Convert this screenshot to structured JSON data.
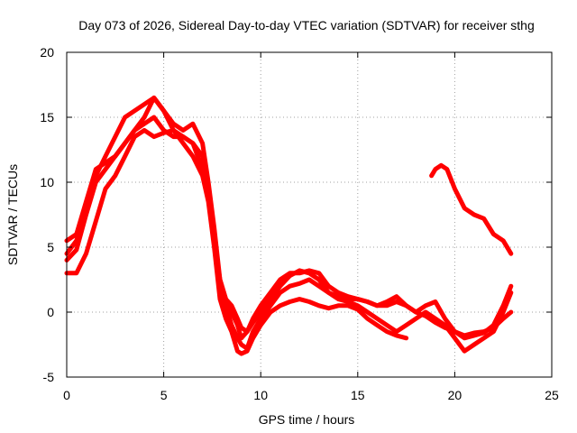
{
  "chart_data": {
    "type": "line",
    "title": "Day 073 of 2026, Sidereal Day-to-day VTEC variation (SDTVAR) for receiver sthg",
    "xlabel": "GPS time / hours",
    "ylabel": "SDTVAR / TECUs",
    "xlim": [
      0,
      25
    ],
    "ylim": [
      -5,
      20
    ],
    "xticks": [
      0,
      5,
      10,
      15,
      20,
      25
    ],
    "yticks": [
      -5,
      0,
      5,
      10,
      15,
      20
    ],
    "grid": true,
    "series_color": "#ff0000",
    "grid_color": "#a0a0a0",
    "series": [
      {
        "name": "trace-1",
        "x": [
          0.0,
          0.5,
          1.0,
          1.5,
          2.0,
          2.5,
          3.0,
          3.5,
          4.0,
          4.5,
          5.0,
          5.5,
          6.0,
          6.5,
          7.0,
          7.3,
          7.6,
          7.9,
          8.2,
          8.5,
          8.8,
          9.0,
          9.3,
          9.6,
          10.0,
          10.5,
          11.0,
          11.5,
          12.0,
          12.5,
          13.0,
          13.5,
          14.0,
          14.5,
          15.0,
          15.5,
          16.0,
          16.5,
          17.0,
          17.5,
          18.0,
          18.5,
          19.0,
          19.5,
          20.0,
          20.5,
          21.0,
          21.5,
          22.0,
          22.5,
          22.9
        ],
        "y": [
          5.5,
          6.0,
          8.5,
          11.0,
          11.5,
          12.0,
          13.0,
          14.0,
          15.0,
          16.5,
          15.5,
          14.0,
          13.5,
          13.0,
          12.0,
          9.0,
          5.5,
          2.5,
          1.0,
          0.0,
          -1.0,
          -2.0,
          -1.5,
          -0.5,
          0.5,
          1.5,
          2.5,
          3.0,
          3.0,
          3.2,
          3.0,
          2.0,
          1.5,
          1.2,
          1.0,
          0.8,
          0.5,
          0.5,
          0.8,
          0.5,
          0.0,
          -0.3,
          -0.8,
          -1.2,
          -1.5,
          -1.8,
          -1.6,
          -1.5,
          -1.2,
          -0.5,
          0.0
        ]
      },
      {
        "name": "trace-2",
        "x": [
          0.0,
          0.5,
          1.0,
          1.5,
          2.0,
          2.5,
          3.0,
          3.5,
          4.0,
          4.5,
          5.0,
          5.5,
          6.0,
          6.5,
          7.0,
          7.3,
          7.6,
          7.9,
          8.2,
          8.5,
          8.8,
          9.0,
          9.3,
          9.6,
          10.0,
          10.5,
          11.0,
          11.5,
          12.0,
          12.5,
          13.0,
          13.5,
          14.0,
          14.5,
          15.0,
          15.5,
          16.0,
          16.5,
          17.0,
          17.5,
          18.0,
          18.5,
          19.0,
          19.5,
          20.0,
          20.5,
          21.0,
          21.5,
          22.0,
          22.5,
          22.9
        ],
        "y": [
          4.5,
          5.5,
          8.0,
          10.5,
          12.0,
          13.5,
          15.0,
          15.5,
          16.0,
          16.5,
          15.5,
          14.5,
          14.0,
          14.5,
          13.0,
          10.0,
          6.5,
          2.5,
          1.0,
          0.5,
          -0.5,
          -1.2,
          -1.5,
          -0.8,
          0.0,
          1.0,
          2.0,
          2.8,
          3.2,
          3.0,
          2.5,
          1.5,
          1.2,
          1.0,
          1.0,
          0.8,
          0.5,
          0.8,
          1.2,
          0.5,
          0.0,
          0.5,
          0.8,
          -0.5,
          -1.5,
          -2.0,
          -1.8,
          -1.6,
          -1.0,
          0.5,
          2.0
        ]
      },
      {
        "name": "trace-3",
        "x": [
          0.0,
          0.5,
          1.0,
          1.5,
          2.0,
          2.5,
          3.0,
          3.5,
          4.0,
          4.5,
          5.0,
          5.5,
          6.0,
          6.5,
          7.0,
          7.3,
          7.6,
          7.9,
          8.2,
          8.5,
          8.8,
          9.0,
          9.3,
          9.6,
          10.0,
          10.5,
          11.0,
          11.5,
          12.0,
          12.5,
          13.0,
          13.5,
          14.0,
          14.5,
          15.0,
          15.5,
          16.0,
          16.5,
          17.0,
          17.5,
          18.0,
          18.5,
          19.0,
          19.5,
          20.0,
          20.5,
          21.0,
          21.5,
          22.0,
          22.5,
          22.9
        ],
        "y": [
          4.0,
          4.8,
          7.5,
          10.0,
          11.0,
          12.0,
          13.0,
          14.0,
          14.5,
          15.0,
          14.0,
          13.5,
          13.5,
          13.0,
          11.0,
          9.0,
          6.0,
          2.0,
          0.5,
          -1.0,
          -2.0,
          -2.5,
          -2.8,
          -1.5,
          -0.5,
          0.5,
          1.5,
          2.0,
          2.2,
          2.5,
          2.0,
          1.5,
          1.0,
          0.8,
          0.5,
          0.0,
          -0.5,
          -1.0,
          -1.5,
          -1.0,
          -0.5,
          0.0,
          -0.5,
          -1.0,
          -2.0,
          -3.0,
          -2.5,
          -2.0,
          -1.5,
          0.0,
          1.5
        ]
      },
      {
        "name": "trace-4",
        "x": [
          0.0,
          0.5,
          1.0,
          1.5,
          2.0,
          2.5,
          3.0,
          3.5,
          4.0,
          4.5,
          5.0,
          5.5,
          6.0,
          6.5,
          7.0,
          7.3,
          7.6,
          7.9,
          8.2,
          8.5,
          8.8,
          9.0,
          9.3,
          9.6,
          10.0,
          10.5,
          11.0,
          11.5,
          12.0,
          12.5,
          13.0,
          13.5,
          14.0,
          14.5,
          15.0,
          15.5,
          16.0,
          16.5,
          17.0,
          17.5
        ],
        "y": [
          3.0,
          3.0,
          4.5,
          7.0,
          9.5,
          10.5,
          12.0,
          13.5,
          14.0,
          13.5,
          13.8,
          14.0,
          13.0,
          12.0,
          10.5,
          8.5,
          5.0,
          1.0,
          -0.5,
          -1.5,
          -3.0,
          -3.2,
          -3.0,
          -2.0,
          -1.0,
          0.0,
          0.5,
          0.8,
          1.0,
          0.8,
          0.5,
          0.3,
          0.5,
          0.5,
          0.2,
          -0.5,
          -1.0,
          -1.5,
          -1.8,
          -2.0
        ]
      },
      {
        "name": "trace-5",
        "x": [
          18.8,
          19.0,
          19.3,
          19.6,
          20.0,
          20.5,
          21.0,
          21.5,
          22.0,
          22.5,
          22.9
        ],
        "y": [
          10.5,
          11.0,
          11.3,
          11.0,
          9.5,
          8.0,
          7.5,
          7.2,
          6.0,
          5.5,
          4.5
        ]
      }
    ]
  }
}
